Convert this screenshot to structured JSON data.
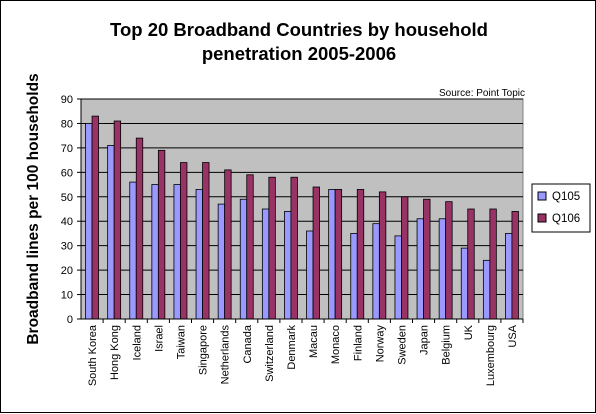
{
  "chart_data": {
    "type": "bar",
    "title_lines": [
      "Top 20 Broadband Countries by household",
      "penetration 2005-2006"
    ],
    "source": "Source: Point Topic",
    "ylabel": "Broadband lines per 100 households",
    "xlabel": "",
    "ylim": [
      0,
      90
    ],
    "yticks": [
      0,
      10,
      20,
      30,
      40,
      50,
      60,
      70,
      80,
      90
    ],
    "grid": true,
    "legend_position": "right",
    "categories": [
      "South Korea",
      "Hong Kong",
      "Iceland",
      "Israel",
      "Taiwan",
      "Singapore",
      "Netherlands",
      "Canada",
      "Switzerland",
      "Denmark",
      "Macau",
      "Monaco",
      "Finland",
      "Norway",
      "Sweden",
      "Japan",
      "Belgium",
      "UK",
      "Luxembourg",
      "USA"
    ],
    "series": [
      {
        "name": "Q105",
        "color": "#9999ff",
        "values": [
          80,
          71,
          56,
          55,
          55,
          53,
          47,
          49,
          45,
          44,
          36,
          53,
          35,
          39,
          34,
          41,
          41,
          29,
          24,
          35
        ]
      },
      {
        "name": "Q106",
        "color": "#993366",
        "values": [
          83,
          81,
          74,
          69,
          64,
          64,
          61,
          59,
          58,
          58,
          54,
          53,
          53,
          52,
          50,
          49,
          48,
          45,
          45,
          44
        ]
      }
    ],
    "colors": {
      "plot_bg": "#c0c0c0",
      "grid": "#000000",
      "axis": "#000000"
    }
  }
}
